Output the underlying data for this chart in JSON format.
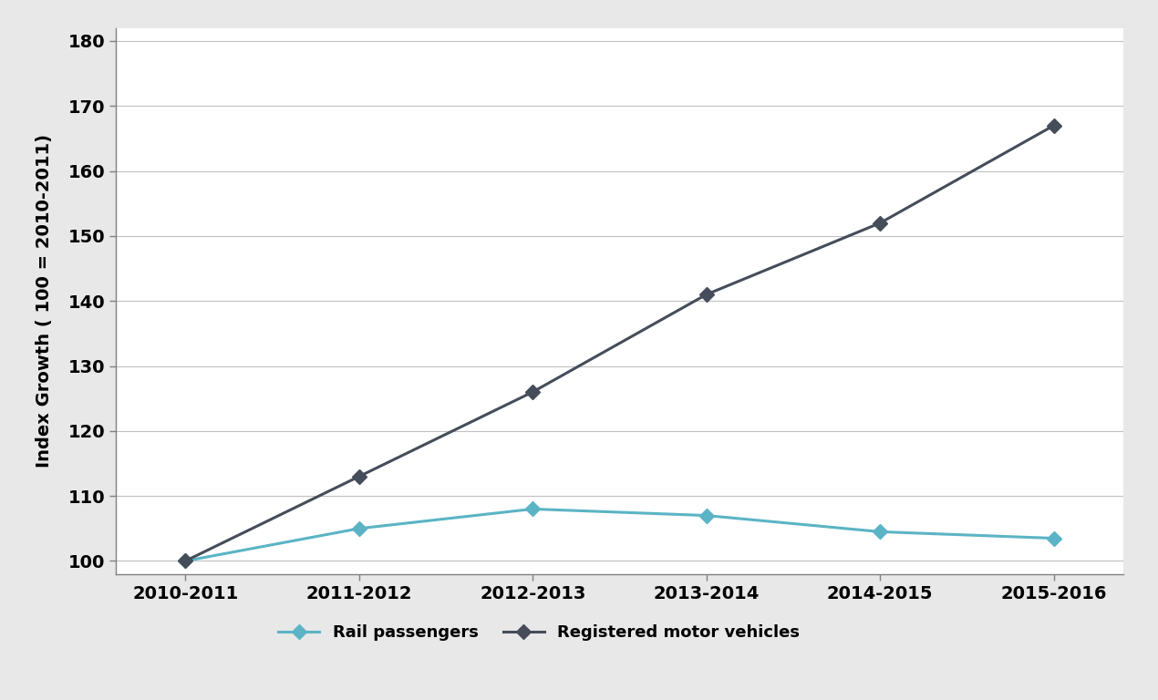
{
  "x_labels": [
    "2010-2011",
    "2011-2012",
    "2012-2013",
    "2013-2014",
    "2014-2015",
    "2015-2016"
  ],
  "rail_passengers": [
    100,
    105,
    108,
    107,
    104.5,
    103.5
  ],
  "registered_motor_vehicles": [
    100,
    113,
    126,
    141,
    152,
    167
  ],
  "rail_color": "#5ab4c5",
  "motor_color": "#454d5a",
  "ylabel": "Index Growth ( 100 = 2010-2011)",
  "ylim": [
    98,
    182
  ],
  "yticks": [
    100,
    110,
    120,
    130,
    140,
    150,
    160,
    170,
    180
  ],
  "legend_rail": "Rail passengers",
  "legend_motor": "Registered motor vehicles",
  "background_color": "#ffffff",
  "figure_facecolor": "#e8e8e8",
  "grid_color": "#c0c0c0",
  "spine_color": "#808080",
  "marker_size": 8,
  "linewidth": 2.2,
  "tick_fontsize": 14,
  "ylabel_fontsize": 14,
  "legend_fontsize": 13
}
